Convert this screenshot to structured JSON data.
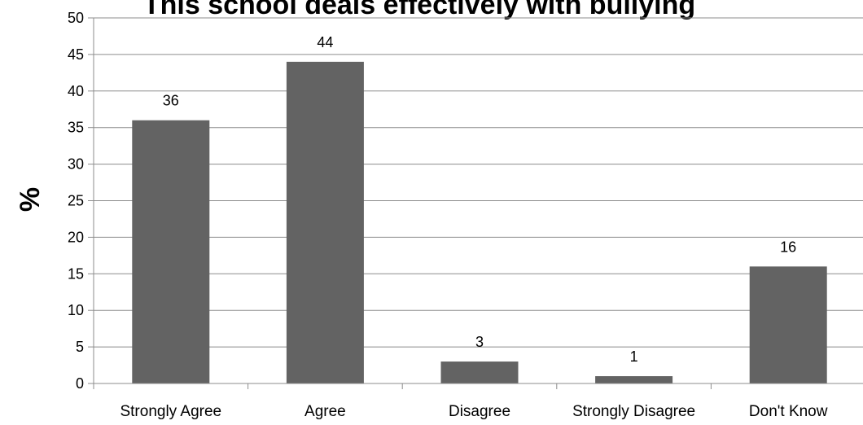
{
  "chart_data": {
    "type": "bar",
    "title": "This school deals effectively with bullying",
    "xlabel": "",
    "ylabel": "%",
    "categories": [
      "Strongly Agree",
      "Agree",
      "Disagree",
      "Strongly Disagree",
      "Don't Know"
    ],
    "values": [
      36,
      44,
      3,
      1,
      16
    ],
    "data_labels": [
      "36",
      "44",
      "3",
      "1",
      "16"
    ],
    "ylim": [
      0,
      50
    ],
    "yticks": [
      "0",
      "5",
      "10",
      "15",
      "20",
      "25",
      "30",
      "35",
      "40",
      "45",
      "50"
    ],
    "grid": true,
    "legend": "none",
    "colors": {
      "bar": "#636363",
      "grid": "#8c8c8c"
    }
  }
}
